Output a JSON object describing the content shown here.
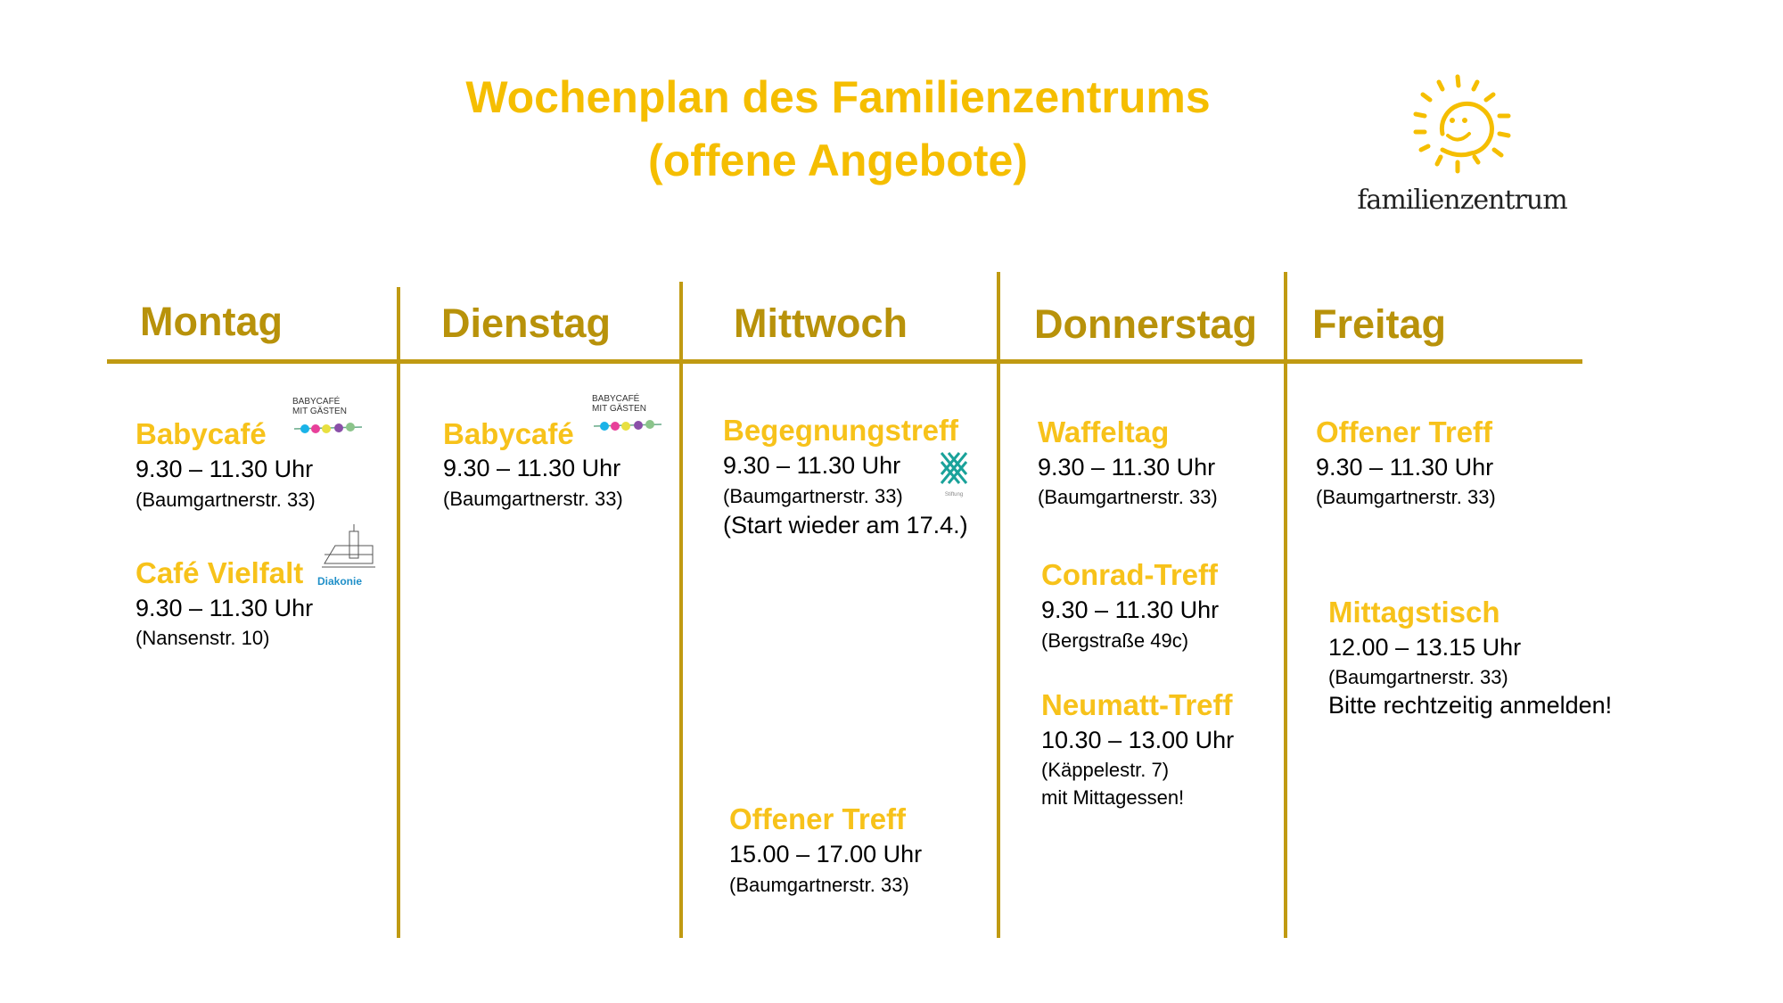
{
  "title": {
    "line1": "Wochenplan des Familienzentrums",
    "line2": "(offene Angebote)"
  },
  "logo": {
    "text": "familienzentrum",
    "color": "#F5BE00"
  },
  "colors": {
    "title": "#F5BE00",
    "day_header": "#B8920A",
    "item_title": "#F7C21A",
    "lines": "#C09A12"
  },
  "days": [
    {
      "name": "Montag",
      "items": [
        {
          "title": "Babycafé",
          "time": "9.30 – 11.30 Uhr",
          "address": "(Baumgartnerstr. 33)",
          "badge": "BABYCAFÉ MIT GÄSTEN"
        },
        {
          "title": "Café Vielfalt",
          "time": "9.30 – 11.30 Uhr",
          "address": "(Nansenstr. 10)",
          "badge": "Diakonie"
        }
      ]
    },
    {
      "name": "Dienstag",
      "items": [
        {
          "title": "Babycafé",
          "time": "9.30 – 11.30 Uhr",
          "address": "(Baumgartnerstr. 33)",
          "badge": "BABYCAFÉ MIT GÄSTEN"
        }
      ]
    },
    {
      "name": "Mittwoch",
      "items": [
        {
          "title": "Begegnungstreff",
          "time": "9.30 – 11.30 Uhr",
          "address": "(Baumgartnerstr. 33)",
          "note": "(Start wieder am 17.4.)"
        },
        {
          "title": "Offener Treff",
          "time": "15.00 – 17.00 Uhr",
          "address": "(Baumgartnerstr. 33)"
        }
      ]
    },
    {
      "name": "Donnerstag",
      "items": [
        {
          "title": "Waffeltag",
          "time": "9.30 – 11.30 Uhr",
          "address": "(Baumgartnerstr. 33)"
        },
        {
          "title": "Conrad-Treff",
          "time": "9.30 – 11.30 Uhr",
          "address": "(Bergstraße 49c)"
        },
        {
          "title": "Neumatt-Treff",
          "time": "10.30 – 13.00 Uhr",
          "address": "(Käppelestr. 7)",
          "note": "mit Mittagessen!"
        }
      ]
    },
    {
      "name": "Freitag",
      "items": [
        {
          "title": "Offener Treff",
          "time": "9.30 – 11.30 Uhr",
          "address": "(Baumgartnerstr. 33)"
        },
        {
          "title": "Mittagstisch",
          "time": "12.00 – 13.15 Uhr",
          "address": "(Baumgartnerstr. 33)",
          "note": "Bitte rechtzeitig anmelden!"
        }
      ]
    }
  ]
}
